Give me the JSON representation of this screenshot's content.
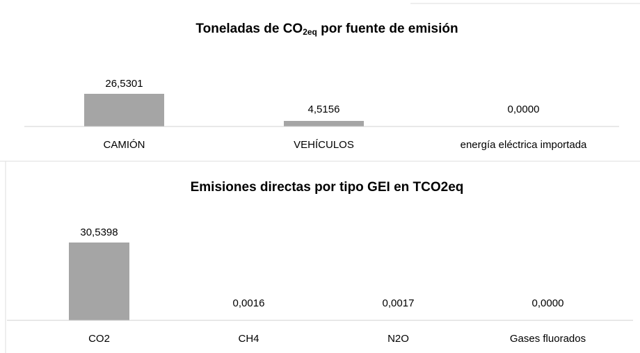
{
  "chart_data": [
    {
      "type": "bar",
      "title": [
        "Toneladas de CO",
        "2eq",
        " por fuente de emisión"
      ],
      "categories": [
        "CAMIÓN",
        "VEHÍCULOS",
        "energía eléctrica importada"
      ],
      "values": [
        26.5301,
        4.5156,
        0
      ],
      "value_labels": [
        "26,5301",
        "4,5156",
        "0,0000"
      ],
      "color": "#a5a5a5"
    },
    {
      "type": "bar",
      "title": "Emisiones directas por tipo GEI en TCO2eq",
      "categories": [
        "CO2",
        "CH4",
        "N2O",
        "Gases fluorados"
      ],
      "values": [
        30.5398,
        0.0016,
        0.0017,
        0
      ],
      "value_labels": [
        "30,5398",
        "0,0016",
        "0,0017",
        "0,0000"
      ],
      "color": "#a5a5a5"
    }
  ]
}
